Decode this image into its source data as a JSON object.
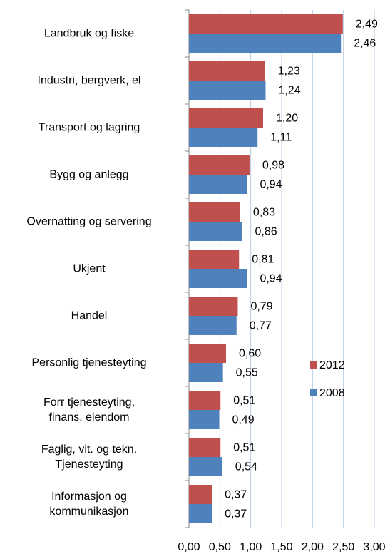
{
  "chart_data": {
    "type": "bar",
    "orientation": "horizontal",
    "categories": [
      "Landbruk og fiske",
      "Industri, bergverk, el",
      "Transport og lagring",
      "Bygg og anlegg",
      "Overnatting og servering",
      "Ukjent",
      "Handel",
      "Personlig tjenesteyting",
      "Forr tjenesteyting,\nfinans, eiendom",
      "Faglig, vit. og tekn.\nTjenesteyting",
      "Informasjon og\nkommunikasjon"
    ],
    "series": [
      {
        "name": "2012",
        "color": "#c0504d",
        "values": [
          2.49,
          1.23,
          1.2,
          0.98,
          0.83,
          0.81,
          0.79,
          0.6,
          0.51,
          0.51,
          0.37
        ],
        "value_labels": [
          "2,49",
          "1,23",
          "1,20",
          "0,98",
          "0,83",
          "0,81",
          "0,79",
          "0,60",
          "0,51",
          "0,51",
          "0,37"
        ]
      },
      {
        "name": "2008",
        "color": "#4f81bd",
        "values": [
          2.46,
          1.24,
          1.11,
          0.94,
          0.86,
          0.94,
          0.77,
          0.55,
          0.49,
          0.54,
          0.37
        ],
        "value_labels": [
          "2,46",
          "1,24",
          "1,11",
          "0,94",
          "0,86",
          "0,94",
          "0,77",
          "0,55",
          "0,49",
          "0,54",
          "0,37"
        ]
      }
    ],
    "xlim": [
      0,
      3
    ],
    "xticks": [
      {
        "value": 0,
        "label": "0,00"
      },
      {
        "value": 0.5,
        "label": "0,50"
      },
      {
        "value": 1,
        "label": "1,00"
      },
      {
        "value": 1.5,
        "label": "1,50"
      },
      {
        "value": 2,
        "label": "2,00"
      },
      {
        "value": 2.5,
        "label": "2,50"
      },
      {
        "value": 3,
        "label": "3,00"
      }
    ],
    "grid": true,
    "legend": "right"
  }
}
